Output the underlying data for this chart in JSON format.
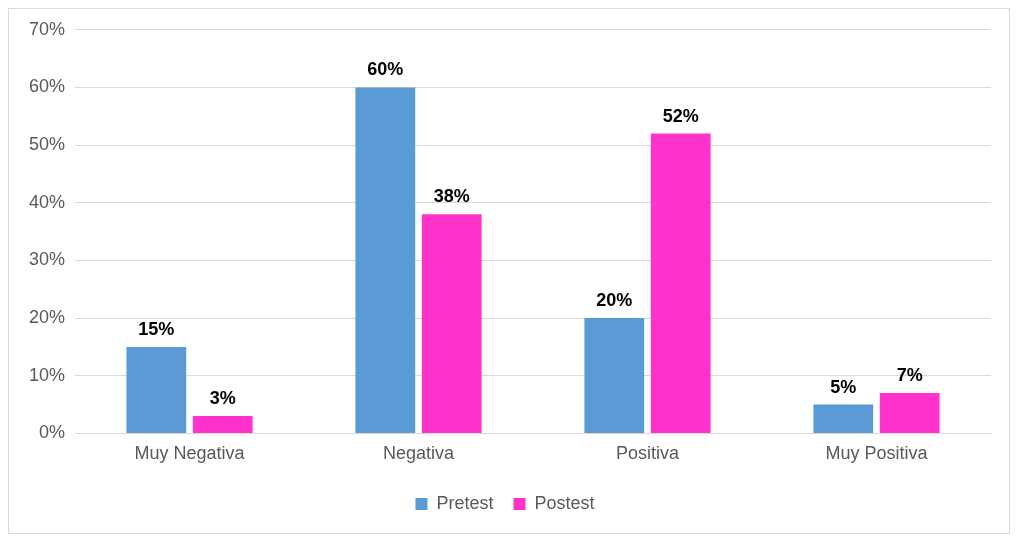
{
  "chart_data": {
    "type": "bar",
    "categories": [
      "Muy Negativa",
      "Negativa",
      "Positiva",
      "Muy Positiva"
    ],
    "series": [
      {
        "name": "Pretest",
        "color": "#5b9bd5",
        "values": [
          15,
          60,
          20,
          5
        ]
      },
      {
        "name": "Postest",
        "color": "#ff33cc",
        "values": [
          3,
          38,
          52,
          7
        ]
      }
    ],
    "ylim": [
      0,
      70
    ],
    "yticks": [
      {
        "value": 0,
        "label": "0%"
      },
      {
        "value": 10,
        "label": "10%"
      },
      {
        "value": 20,
        "label": "20%"
      },
      {
        "value": 30,
        "label": "30%"
      },
      {
        "value": 40,
        "label": "40%"
      },
      {
        "value": 50,
        "label": "50%"
      },
      {
        "value": 60,
        "label": "60%"
      },
      {
        "value": 70,
        "label": "70%"
      }
    ],
    "value_labels": [
      [
        "15%",
        "60%",
        "20%",
        "5%"
      ],
      [
        "3%",
        "38%",
        "52%",
        "7%"
      ]
    ],
    "grid": "y",
    "legend": "bottom"
  }
}
